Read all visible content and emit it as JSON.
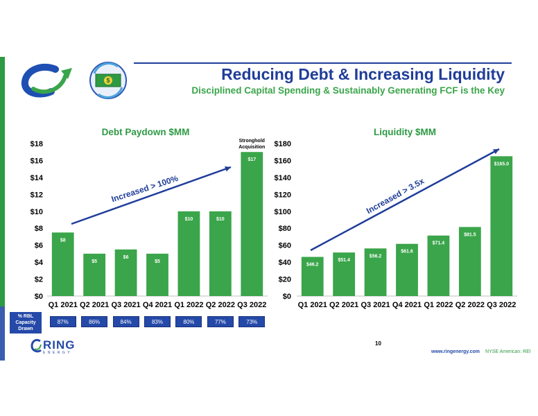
{
  "header": {
    "title": "Reducing Debt & Increasing Liquidity",
    "subtitle": "Disciplined Capital Spending & Sustainably Generating FCF is the Key"
  },
  "colors": {
    "bar": "#3aa54a",
    "accent_blue": "#1f3d99",
    "title_green": "#2e9a44"
  },
  "icons": {
    "logo": "ring-swirl-logo-icon",
    "cash": "cash-cycle-icon"
  },
  "chart_data": [
    {
      "type": "bar",
      "title": "Debt Paydown $MM",
      "categories": [
        "Q1 2021",
        "Q2 2021",
        "Q3 2021",
        "Q4 2021",
        "Q1 2022",
        "Q2 2022",
        "Q3 2022"
      ],
      "values": [
        7.5,
        5,
        5.5,
        5,
        10,
        10,
        17
      ],
      "data_labels": [
        "$8",
        "$5",
        "$6",
        "$5",
        "$10",
        "$10",
        "$17"
      ],
      "yticks": [
        "$0",
        "$2",
        "$4",
        "$6",
        "$8",
        "$10",
        "$12",
        "$14",
        "$16",
        "$18"
      ],
      "ylim": [
        0,
        18
      ],
      "annotation": [
        "Stronghold",
        "Acquisition"
      ],
      "trend_label": "Increased > 100%",
      "grid": false
    },
    {
      "type": "bar",
      "title": "Liquidity $MM",
      "categories": [
        "Q1 2021",
        "Q2 2021",
        "Q3 2021",
        "Q4 2021",
        "Q1 2022",
        "Q2 2022",
        "Q3 2022"
      ],
      "values": [
        46.2,
        51.4,
        56.2,
        61.6,
        71.4,
        81.5,
        165.0
      ],
      "data_labels": [
        "$46.2",
        "$51.4",
        "$56.2",
        "$61.6",
        "$71.4",
        "$81.5",
        "$165.0"
      ],
      "yticks": [
        "$0",
        "$20",
        "$40",
        "$60",
        "$80",
        "$100",
        "$120",
        "$140",
        "$160",
        "$180"
      ],
      "ylim": [
        0,
        180
      ],
      "trend_label": "Increased > 3.5x",
      "grid": false
    }
  ],
  "rbl": {
    "label": [
      "% RBL",
      "Capacity",
      "Drawn"
    ],
    "values": [
      "87%",
      "86%",
      "84%",
      "83%",
      "80%",
      "77%",
      "73%"
    ]
  },
  "footer": {
    "company": "RING",
    "company_sub": "ENERGY",
    "page": "10",
    "url": "www.ringenergy.com",
    "exchange": "NYSE American: REI"
  }
}
